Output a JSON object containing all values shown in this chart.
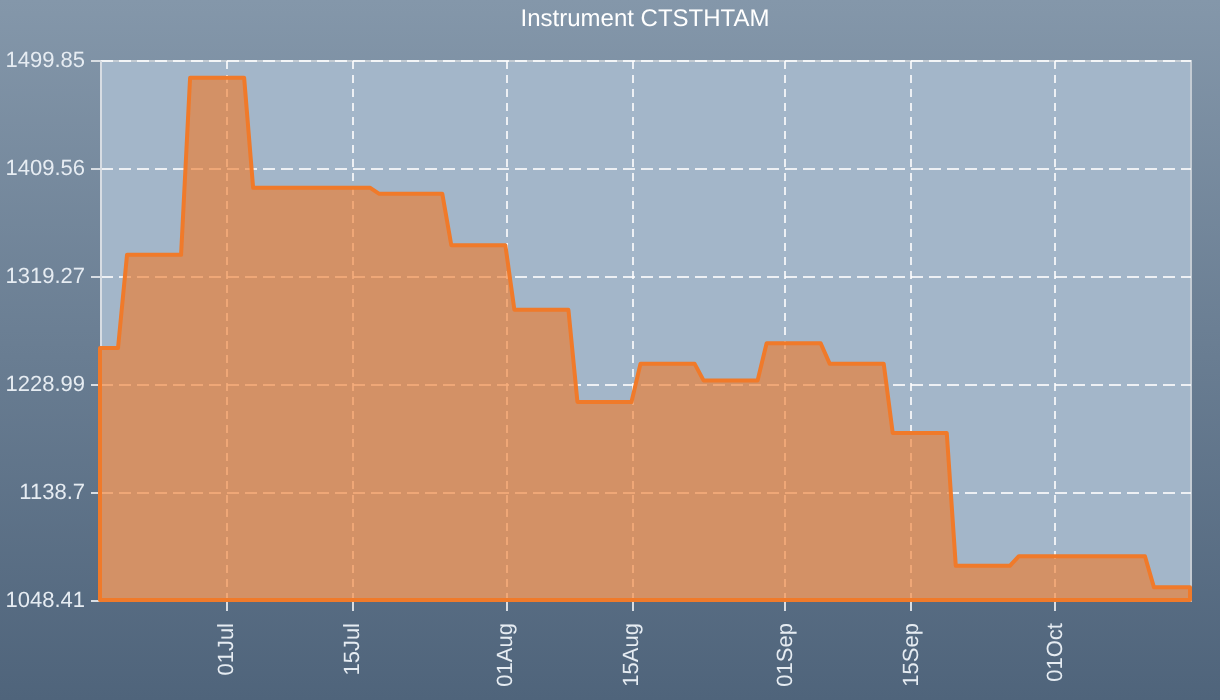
{
  "chart_data": {
    "type": "area",
    "title": "Instrument CTSTHTAM",
    "x": [
      "--06-17",
      "--06-19",
      "--06-20",
      "--06-26",
      "--06-27",
      "--07-03",
      "--07-04",
      "--07-17",
      "--07-18",
      "--07-25",
      "--07-26",
      "--08-01",
      "--08-02",
      "--08-08",
      "--08-09",
      "--08-15",
      "--08-16",
      "--08-22",
      "--08-23",
      "--08-29",
      "--08-30",
      "--09-05",
      "--09-06",
      "--09-12",
      "--09-13",
      "--09-19",
      "--09-20",
      "--09-26",
      "--09-27",
      "--10-11",
      "--10-12",
      "--10-16"
    ],
    "series": [
      {
        "color": "#f07a2a",
        "values": [
          1259,
          1259,
          1337,
          1337,
          1485,
          1485,
          1393,
          1393,
          1388,
          1388,
          1345,
          1345,
          1291,
          1291,
          1214,
          1214,
          1246,
          1246,
          1232,
          1232,
          1263,
          1263,
          1246,
          1246,
          1188,
          1188,
          1077,
          1077,
          1085,
          1085,
          1059,
          1059
        ]
      }
    ],
    "xlim": [
      "--06-17",
      "--10-16"
    ],
    "xticks": [
      {
        "value": "--07-01",
        "label": "01Jul"
      },
      {
        "value": "--07-15",
        "label": "15Jul"
      },
      {
        "value": "--08-01",
        "label": "01Aug"
      },
      {
        "value": "--08-15",
        "label": "15Aug"
      },
      {
        "value": "--09-01",
        "label": "01Sep"
      },
      {
        "value": "--09-15",
        "label": "15Sep"
      },
      {
        "value": "--10-01",
        "label": "01Oct"
      }
    ],
    "ylim": [
      1048.41,
      1499.85
    ],
    "yticks": [
      1048.41,
      1138.7,
      1228.99,
      1319.27,
      1409.56,
      1499.85
    ],
    "grid": true,
    "marker": "none",
    "line_style": "solid"
  }
}
